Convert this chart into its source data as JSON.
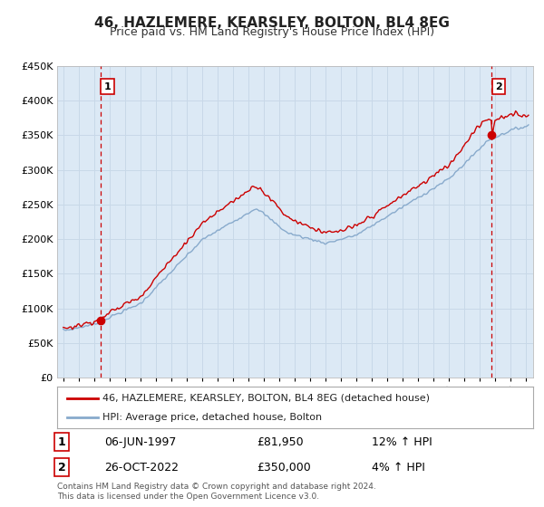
{
  "title": "46, HAZLEMERE, KEARSLEY, BOLTON, BL4 8EG",
  "subtitle": "Price paid vs. HM Land Registry's House Price Index (HPI)",
  "hpi_label": "HPI: Average price, detached house, Bolton",
  "property_label": "46, HAZLEMERE, KEARSLEY, BOLTON, BL4 8EG (detached house)",
  "annotation1_date": "06-JUN-1997",
  "annotation1_price": "£81,950",
  "annotation1_hpi": "12% ↑ HPI",
  "annotation2_date": "26-OCT-2022",
  "annotation2_price": "£350,000",
  "annotation2_hpi": "4% ↑ HPI",
  "sale1_year": 1997.44,
  "sale1_value": 81950,
  "sale2_year": 2022.82,
  "sale2_value": 350000,
  "ylim": [
    0,
    450000
  ],
  "yticks": [
    0,
    50000,
    100000,
    150000,
    200000,
    250000,
    300000,
    350000,
    400000,
    450000
  ],
  "plot_bg_color": "#dce9f5",
  "fig_bg_color": "#ffffff",
  "red_line_color": "#cc0000",
  "blue_line_color": "#88aacc",
  "grid_color": "#c8d8e8",
  "dashed_line_color": "#cc0000",
  "footer": "Contains HM Land Registry data © Crown copyright and database right 2024.\nThis data is licensed under the Open Government Licence v3.0."
}
